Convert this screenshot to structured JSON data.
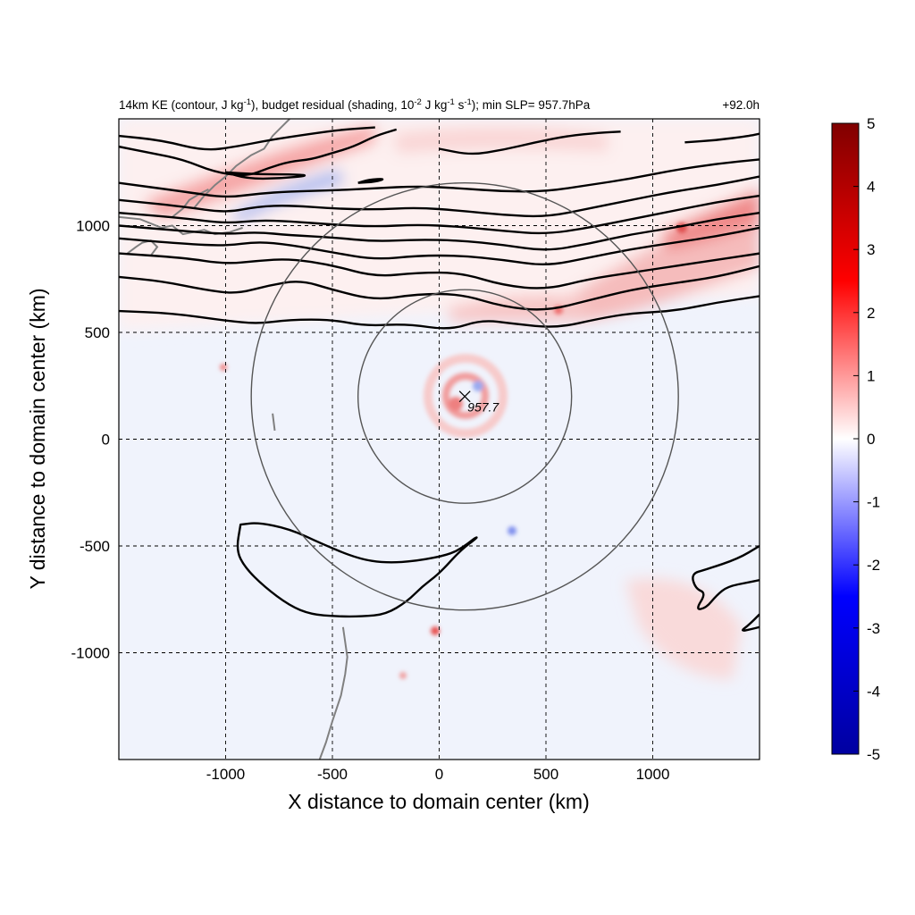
{
  "chart_data": {
    "type": "heatmap",
    "title_parts": [
      "14km KE (contour, J kg",
      "-1",
      "), budget residual (shading, 10",
      "-2",
      " J kg",
      "-1",
      " s",
      "-1",
      "); min SLP= 957.7hPa"
    ],
    "time_label": "+92.0h",
    "xlabel": "X distance to domain center (km)",
    "ylabel": "Y distance to domain center (km)",
    "xlim": [
      -1500,
      1500
    ],
    "ylim": [
      -1500,
      1500
    ],
    "xticks": [
      -1000,
      -500,
      0,
      500,
      1000
    ],
    "yticks": [
      -1000,
      -500,
      0,
      500,
      1000
    ],
    "grid": true,
    "colorbar": {
      "min": -5,
      "max": 5,
      "ticks": [
        5,
        4,
        3,
        2,
        1,
        0,
        -1,
        -2,
        -3,
        -4,
        -5
      ],
      "colors": [
        "#0000a0",
        "#0000ff",
        "#ffffff",
        "#ff0000",
        "#800000"
      ]
    },
    "storm_center": {
      "x": 120,
      "y": 200,
      "label": "957.7"
    },
    "rings_radius_km": [
      500,
      1000
    ],
    "ke_contours": [
      [
        [
          -1500,
          600
        ],
        [
          -1250,
          590
        ],
        [
          -1000,
          555
        ],
        [
          -850,
          540
        ],
        [
          -700,
          560
        ],
        [
          -500,
          560
        ],
        [
          -350,
          530
        ],
        [
          -150,
          540
        ],
        [
          50,
          510
        ],
        [
          200,
          560
        ],
        [
          350,
          540
        ],
        [
          550,
          520
        ],
        [
          750,
          565
        ],
        [
          900,
          590
        ],
        [
          1100,
          600
        ],
        [
          1300,
          640
        ],
        [
          1500,
          670
        ]
      ],
      [
        [
          -1500,
          760
        ],
        [
          -1300,
          740
        ],
        [
          -1100,
          700
        ],
        [
          -950,
          680
        ],
        [
          -800,
          720
        ],
        [
          -650,
          745
        ],
        [
          -500,
          700
        ],
        [
          -300,
          650
        ],
        [
          -100,
          680
        ],
        [
          100,
          680
        ],
        [
          300,
          620
        ],
        [
          500,
          600
        ],
        [
          700,
          650
        ],
        [
          900,
          700
        ],
        [
          1100,
          730
        ],
        [
          1300,
          760
        ],
        [
          1500,
          810
        ]
      ],
      [
        [
          -1500,
          870
        ],
        [
          -1200,
          850
        ],
        [
          -1000,
          820
        ],
        [
          -850,
          835
        ],
        [
          -700,
          845
        ],
        [
          -500,
          815
        ],
        [
          -300,
          760
        ],
        [
          -100,
          780
        ],
        [
          100,
          780
        ],
        [
          300,
          720
        ],
        [
          500,
          700
        ],
        [
          700,
          750
        ],
        [
          900,
          780
        ],
        [
          1100,
          810
        ],
        [
          1300,
          840
        ],
        [
          1500,
          870
        ]
      ],
      [
        [
          -1500,
          940
        ],
        [
          -1200,
          915
        ],
        [
          -1000,
          905
        ],
        [
          -850,
          925
        ],
        [
          -700,
          910
        ],
        [
          -500,
          875
        ],
        [
          -300,
          840
        ],
        [
          -100,
          860
        ],
        [
          100,
          860
        ],
        [
          300,
          840
        ],
        [
          500,
          810
        ],
        [
          700,
          850
        ],
        [
          900,
          890
        ],
        [
          1100,
          920
        ],
        [
          1300,
          950
        ],
        [
          1500,
          990
        ]
      ],
      [
        [
          -1500,
          1000
        ],
        [
          -1200,
          975
        ],
        [
          -1000,
          960
        ],
        [
          -850,
          970
        ],
        [
          -700,
          955
        ],
        [
          -500,
          945
        ],
        [
          -300,
          925
        ],
        [
          -100,
          935
        ],
        [
          100,
          930
        ],
        [
          300,
          910
        ],
        [
          500,
          880
        ],
        [
          700,
          915
        ],
        [
          900,
          960
        ],
        [
          1100,
          990
        ],
        [
          1300,
          1030
        ],
        [
          1500,
          1060
        ]
      ],
      [
        [
          -1500,
          1060
        ],
        [
          -1200,
          1035
        ],
        [
          -1000,
          1010
        ],
        [
          -850,
          1025
        ],
        [
          -700,
          1020
        ],
        [
          -500,
          1005
        ],
        [
          -300,
          995
        ],
        [
          -100,
          1005
        ],
        [
          100,
          995
        ],
        [
          300,
          975
        ],
        [
          500,
          960
        ],
        [
          700,
          990
        ],
        [
          900,
          1030
        ],
        [
          1100,
          1070
        ],
        [
          1300,
          1110
        ],
        [
          1500,
          1140
        ]
      ],
      [
        [
          -1500,
          1120
        ],
        [
          -1200,
          1090
        ],
        [
          -1000,
          1060
        ],
        [
          -850,
          1090
        ],
        [
          -700,
          1095
        ],
        [
          -500,
          1080
        ],
        [
          -300,
          1075
        ],
        [
          -100,
          1085
        ],
        [
          100,
          1070
        ],
        [
          300,
          1050
        ],
        [
          500,
          1040
        ],
        [
          700,
          1080
        ],
        [
          900,
          1120
        ],
        [
          1100,
          1160
        ],
        [
          1300,
          1190
        ],
        [
          1500,
          1230
        ]
      ],
      [
        [
          -1500,
          1200
        ],
        [
          -1200,
          1160
        ],
        [
          -1000,
          1130
        ],
        [
          -850,
          1150
        ],
        [
          -700,
          1160
        ],
        [
          -500,
          1165
        ],
        [
          -300,
          1175
        ],
        [
          -100,
          1185
        ],
        [
          100,
          1175
        ],
        [
          300,
          1160
        ],
        [
          500,
          1160
        ],
        [
          700,
          1190
        ],
        [
          900,
          1220
        ],
        [
          1100,
          1260
        ],
        [
          1300,
          1290
        ],
        [
          1500,
          1310
        ]
      ],
      [
        [
          -1500,
          1420
        ],
        [
          -1300,
          1400
        ],
        [
          -1100,
          1350
        ],
        [
          -950,
          1370
        ],
        [
          -800,
          1400
        ],
        [
          -600,
          1430
        ],
        [
          -450,
          1450
        ],
        [
          -300,
          1460
        ]
      ],
      [
        [
          -1500,
          1370
        ],
        [
          -1350,
          1340
        ],
        [
          -1200,
          1310
        ],
        [
          -1050,
          1250
        ],
        [
          -900,
          1230
        ],
        [
          -800,
          1270
        ],
        [
          -700,
          1300
        ],
        [
          -600,
          1310
        ],
        [
          -500,
          1340
        ],
        [
          -400,
          1370
        ],
        [
          -300,
          1420
        ],
        [
          -200,
          1450
        ]
      ],
      [
        [
          0,
          1360
        ],
        [
          150,
          1330
        ],
        [
          300,
          1355
        ],
        [
          450,
          1390
        ],
        [
          600,
          1420
        ],
        [
          750,
          1435
        ],
        [
          850,
          1440
        ]
      ],
      [
        [
          1150,
          1390
        ],
        [
          1300,
          1400
        ],
        [
          1450,
          1420
        ],
        [
          1500,
          1430
        ]
      ],
      [
        [
          -1000,
          1250
        ],
        [
          -850,
          1240
        ],
        [
          -700,
          1240
        ],
        [
          -600,
          1235
        ],
        [
          -750,
          1220
        ],
        [
          -900,
          1220
        ],
        [
          -1000,
          1250
        ]
      ],
      [
        [
          -380,
          1200
        ],
        [
          -300,
          1205
        ],
        [
          -250,
          1220
        ],
        [
          -330,
          1215
        ],
        [
          -380,
          1200
        ]
      ]
    ],
    "south_blob": [
      [
        -930,
        -400
      ],
      [
        -850,
        -390
      ],
      [
        -700,
        -420
      ],
      [
        -550,
        -490
      ],
      [
        -380,
        -560
      ],
      [
        -250,
        -580
      ],
      [
        -100,
        -570
      ],
      [
        50,
        -540
      ],
      [
        120,
        -500
      ],
      [
        170,
        -460
      ],
      [
        180,
        -460
      ],
      [
        100,
        -520
      ],
      [
        0,
        -630
      ],
      [
        -80,
        -690
      ],
      [
        -150,
        -760
      ],
      [
        -250,
        -820
      ],
      [
        -360,
        -830
      ],
      [
        -480,
        -830
      ],
      [
        -600,
        -820
      ],
      [
        -700,
        -780
      ],
      [
        -820,
        -690
      ],
      [
        -910,
        -600
      ],
      [
        -950,
        -520
      ],
      [
        -930,
        -400
      ]
    ],
    "se_contours": [
      [
        [
          1500,
          -500
        ],
        [
          1400,
          -560
        ],
        [
          1250,
          -610
        ],
        [
          1180,
          -630
        ],
        [
          1200,
          -700
        ],
        [
          1250,
          -720
        ],
        [
          1200,
          -800
        ],
        [
          1250,
          -790
        ],
        [
          1300,
          -730
        ],
        [
          1350,
          -690
        ],
        [
          1450,
          -670
        ],
        [
          1500,
          -660
        ]
      ],
      [
        [
          1500,
          -820
        ],
        [
          1450,
          -870
        ],
        [
          1410,
          -900
        ],
        [
          1460,
          -890
        ],
        [
          1500,
          -880
        ]
      ]
    ],
    "coastlines": [
      [
        [
          -1500,
          1040
        ],
        [
          -1400,
          1030
        ],
        [
          -1300,
          990
        ],
        [
          -1250,
          1000
        ],
        [
          -1200,
          960
        ],
        [
          -1100,
          980
        ],
        [
          -1050,
          960
        ],
        [
          -980,
          970
        ],
        [
          -920,
          990
        ]
      ],
      [
        [
          -1460,
          870
        ],
        [
          -1420,
          900
        ],
        [
          -1390,
          920
        ],
        [
          -1350,
          930
        ],
        [
          -1320,
          900
        ],
        [
          -1350,
          860
        ]
      ],
      [
        [
          -1150,
          1080
        ],
        [
          -1100,
          1140
        ],
        [
          -1050,
          1190
        ],
        [
          -1000,
          1230
        ],
        [
          -950,
          1280
        ],
        [
          -880,
          1330
        ],
        [
          -820,
          1360
        ],
        [
          -780,
          1420
        ],
        [
          -740,
          1460
        ],
        [
          -700,
          1500
        ]
      ],
      [
        [
          -1250,
          1040
        ],
        [
          -1200,
          1080
        ],
        [
          -1170,
          1120
        ],
        [
          -1120,
          1150
        ],
        [
          -1080,
          1170
        ]
      ],
      [
        [
          -780,
          120
        ],
        [
          -775,
          80
        ],
        [
          -770,
          40
        ]
      ],
      [
        [
          -450,
          -880
        ],
        [
          -440,
          -950
        ],
        [
          -430,
          -1020
        ],
        [
          -440,
          -1100
        ],
        [
          -460,
          -1200
        ],
        [
          -500,
          -1320
        ],
        [
          -530,
          -1420
        ],
        [
          -560,
          -1500
        ]
      ]
    ]
  }
}
